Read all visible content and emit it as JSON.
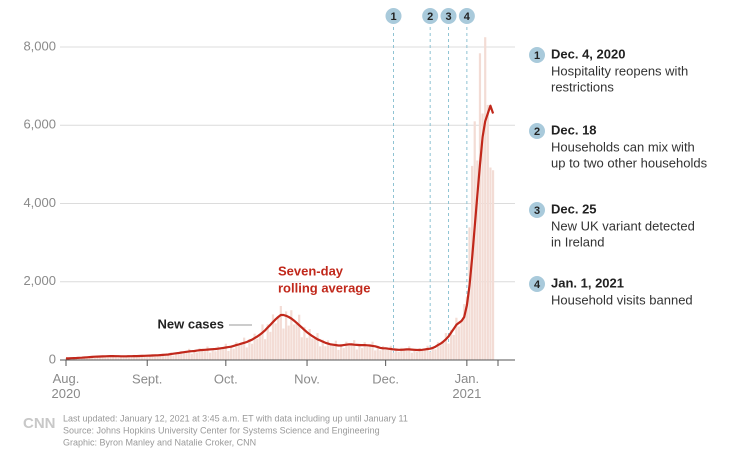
{
  "chart_data": {
    "type": "bar_line",
    "categories": [
      "Aug. 2020",
      null,
      null,
      null,
      null,
      null,
      null,
      null,
      null,
      null,
      null,
      null,
      null,
      null,
      null,
      null,
      null,
      null,
      null,
      null,
      null,
      null,
      null,
      null,
      null,
      null,
      null,
      null,
      null,
      null,
      null,
      "Sept.",
      null,
      null,
      null,
      null,
      null,
      null,
      null,
      null,
      null,
      null,
      null,
      null,
      null,
      null,
      null,
      null,
      null,
      null,
      null,
      null,
      null,
      null,
      null,
      null,
      null,
      null,
      null,
      null,
      null,
      "Oct.",
      null,
      null,
      null,
      null,
      null,
      null,
      null,
      null,
      null,
      null,
      null,
      null,
      null,
      null,
      null,
      null,
      null,
      null,
      null,
      null,
      null,
      null,
      null,
      null,
      null,
      null,
      null,
      null,
      null,
      null,
      "Nov.",
      null,
      null,
      null,
      null,
      null,
      null,
      null,
      null,
      null,
      null,
      null,
      null,
      null,
      null,
      null,
      null,
      null,
      null,
      null,
      null,
      null,
      null,
      null,
      null,
      null,
      null,
      null,
      null,
      null,
      "Dec.",
      null,
      null,
      null,
      null,
      null,
      null,
      null,
      null,
      null,
      null,
      null,
      null,
      null,
      null,
      null,
      null,
      null,
      null,
      null,
      null,
      null,
      null,
      null,
      null,
      null,
      null,
      null,
      null,
      null,
      null,
      "Jan. 2021",
      null,
      null,
      null,
      null,
      null,
      null,
      null,
      null,
      null,
      null
    ],
    "series": [
      {
        "name": "New cases",
        "color": "#f3dcd5",
        "kind": "bar",
        "values": [
          44,
          34,
          54,
          43,
          50,
          72,
          42,
          72,
          56,
          90,
          72,
          85,
          114,
          63,
          101,
          76,
          118,
          90,
          100,
          127,
          67,
          105,
          76,
          114,
          86,
          98,
          130,
          70,
          112,
          84,
          130,
          99,
          112,
          150,
          83,
          132,
          100,
          156,
          122,
          140,
          195,
          112,
          187,
          144,
          228,
          180,
          210,
          286,
          158,
          253,
          192,
          300,
          230,
          260,
          345,
          189,
          303,
          224,
          348,
          270,
          310,
          416,
          231,
          374,
          288,
          456,
          360,
          420,
          572,
          322,
          539,
          416,
          672,
          540,
          650,
          910,
          532,
          913,
          720,
          1164,
          936,
          1100,
          1380,
          805,
          1243,
          880,
          1272,
          909,
          950,
          1157,
          581,
          847,
          568,
          792,
          549,
          570,
          689,
          350,
          517,
          352,
          504,
          360,
          390,
          494,
          259,
          407,
          304,
          468,
          360,
          400,
          507,
          270,
          418,
          304,
          456,
          338,
          370,
          468,
          245,
          363,
          248,
          360,
          270,
          290,
          364,
          189,
          292,
          208,
          312,
          239,
          270,
          351,
          186,
          286,
          204,
          306,
          234,
          270,
          364,
          203,
          341,
          272,
          456,
          378,
          470,
          689,
          420,
          770,
          640,
          1080,
          855,
          1000,
          1430,
          1620,
          3390,
          4960,
          6100,
          5100,
          7840,
          6300,
          8250,
          6520,
          4920,
          4850
        ]
      },
      {
        "name": "Seven-day rolling average",
        "color": "#c1281b",
        "kind": "line",
        "values": [
          40,
          42,
          45,
          48,
          50,
          55,
          60,
          65,
          70,
          75,
          80,
          85,
          88,
          90,
          92,
          95,
          98,
          100,
          100,
          98,
          96,
          95,
          95,
          95,
          96,
          98,
          100,
          100,
          102,
          105,
          108,
          110,
          112,
          115,
          118,
          120,
          125,
          130,
          135,
          140,
          150,
          160,
          170,
          180,
          190,
          200,
          210,
          220,
          225,
          230,
          240,
          250,
          255,
          260,
          265,
          270,
          275,
          280,
          290,
          300,
          310,
          320,
          330,
          340,
          360,
          380,
          400,
          420,
          440,
          460,
          490,
          520,
          560,
          600,
          650,
          700,
          760,
          830,
          900,
          970,
          1040,
          1100,
          1150,
          1150,
          1130,
          1100,
          1060,
          1010,
          950,
          890,
          830,
          770,
          710,
          660,
          610,
          570,
          530,
          500,
          470,
          440,
          420,
          400,
          390,
          380,
          370,
          370,
          380,
          390,
          400,
          400,
          390,
          385,
          380,
          380,
          380,
          375,
          370,
          360,
          350,
          330,
          310,
          300,
          300,
          290,
          280,
          270,
          265,
          260,
          260,
          265,
          270,
          270,
          265,
          260,
          255,
          255,
          260,
          270,
          280,
          290,
          310,
          340,
          380,
          420,
          470,
          530,
          600,
          700,
          800,
          900,
          950,
          1000,
          1100,
          1400,
          1900,
          2600,
          3400,
          4200,
          5000,
          5700,
          6100,
          6300,
          6500,
          6300
        ]
      }
    ],
    "ylim": [
      0,
      8400
    ],
    "yticks": [
      0,
      {
        "value": 2000,
        "label": "2,000"
      },
      {
        "value": 4000,
        "label": "4,000"
      },
      {
        "value": 6000,
        "label": "6,000"
      },
      {
        "value": 8000,
        "label": "8,000"
      }
    ],
    "grid": true,
    "bar_annotation": "New cases",
    "line_annotation": [
      "Seven-day",
      "rolling average"
    ],
    "events": [
      {
        "num": "1",
        "date": "Dec. 4, 2020",
        "text": [
          "Hospitality reopens with",
          "restrictions"
        ]
      },
      {
        "num": "2",
        "date": "Dec. 18",
        "text": [
          "Households can mix with",
          "up to two other households"
        ]
      },
      {
        "num": "3",
        "date": "Dec. 25",
        "text": [
          "New UK variant detected",
          "in Ireland"
        ]
      },
      {
        "num": "4",
        "date": "Jan. 1, 2021",
        "text": [
          "Household visits banned"
        ]
      }
    ],
    "logo": "CNN",
    "footer": [
      "Last updated: January 12, 2021 at 3:45 a.m. ET with data including up until January 11",
      "Source: Johns Hopkins University Center for Systems Science and Engineering",
      "Graphic: Byron Manley and Natalie Croker, CNN"
    ]
  }
}
